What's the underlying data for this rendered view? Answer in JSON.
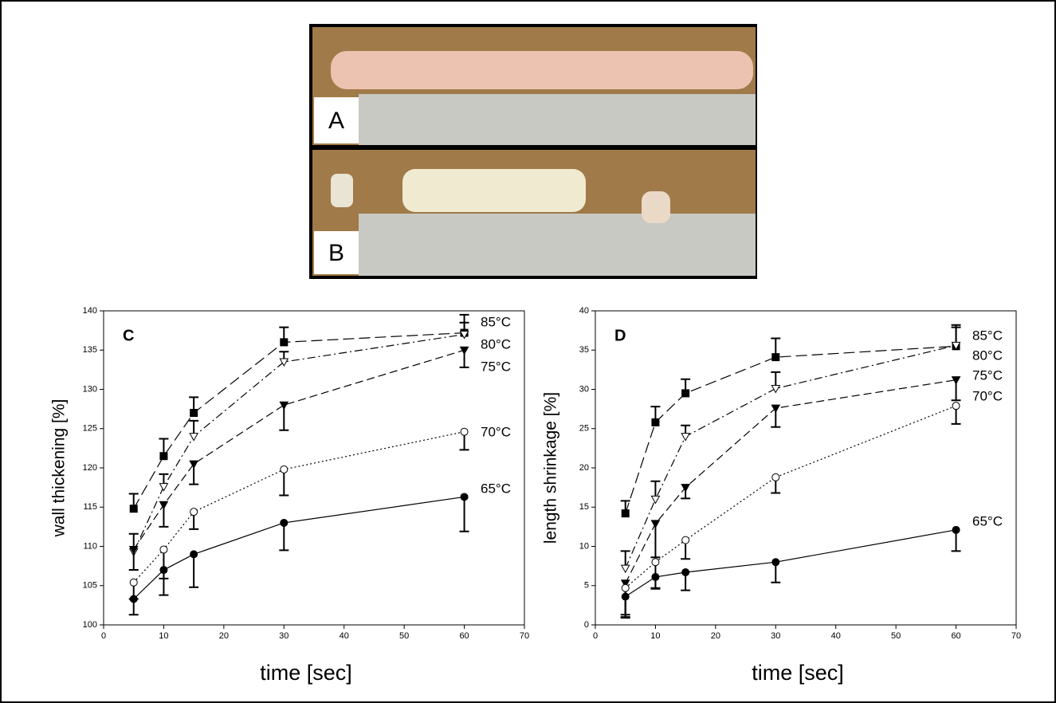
{
  "panels": [
    {
      "label": "A"
    },
    {
      "label": "B"
    }
  ],
  "chart_data": [
    {
      "type": "line",
      "panel_label": "C",
      "ylabel": "wall thickening [%]",
      "xlabel": "time [sec]",
      "x": [
        5,
        10,
        15,
        30,
        60
      ],
      "xlim": [
        0,
        70
      ],
      "xticks": [
        0,
        10,
        20,
        30,
        40,
        50,
        60,
        70
      ],
      "ylim": [
        100,
        140
      ],
      "yticks": [
        100,
        105,
        110,
        115,
        120,
        125,
        130,
        135,
        140
      ],
      "series": [
        {
          "name": "85°C",
          "color": "#000000",
          "marker": "square",
          "marker_filled": true,
          "line_style": "long-dash",
          "error_side": "up",
          "values": [
            114.8,
            121.5,
            127,
            136,
            137.2
          ],
          "errors": [
            1.9,
            2.2,
            2,
            1.9,
            2.3
          ]
        },
        {
          "name": "80°C",
          "color": "#000000",
          "marker": "triangle-down",
          "marker_filled": false,
          "line_style": "dash-dot",
          "error_side": "up",
          "values": [
            109.3,
            117.6,
            124,
            133.5,
            137
          ],
          "errors": [
            2.3,
            1.6,
            2,
            1.3,
            1.5
          ]
        },
        {
          "name": "75°C",
          "color": "#000000",
          "marker": "triangle-down",
          "marker_filled": true,
          "line_style": "dashed",
          "error_side": "down",
          "values": [
            109.6,
            115.3,
            120.5,
            128,
            135
          ],
          "errors": [
            2.6,
            2.8,
            2.6,
            3.2,
            2.2
          ]
        },
        {
          "name": "70°C",
          "color": "#000000",
          "marker": "circle",
          "marker_filled": false,
          "line_style": "dotted",
          "error_side": "down",
          "values": [
            105.4,
            109.6,
            114.4,
            119.8,
            124.6
          ],
          "errors": [
            2.1,
            3.7,
            2.2,
            3.3,
            2.3
          ]
        },
        {
          "name": "65°C",
          "color": "#000000",
          "marker": "circle",
          "marker_filled": true,
          "line_style": "solid",
          "error_side": "down",
          "values": [
            103.3,
            107,
            109,
            113,
            116.3
          ],
          "errors": [
            2,
            3.2,
            4.2,
            3.5,
            4.4
          ]
        }
      ]
    },
    {
      "type": "line",
      "panel_label": "D",
      "ylabel": "length shrinkage [%]",
      "xlabel": "time [sec]",
      "x": [
        5,
        10,
        15,
        30,
        60
      ],
      "xlim": [
        0,
        70
      ],
      "xticks": [
        0,
        10,
        20,
        30,
        40,
        50,
        60,
        70
      ],
      "ylim": [
        0,
        40
      ],
      "yticks": [
        0,
        5,
        10,
        15,
        20,
        25,
        30,
        35,
        40
      ],
      "series": [
        {
          "name": "85°C",
          "color": "#000000",
          "marker": "square",
          "marker_filled": true,
          "line_style": "long-dash",
          "error_side": "up",
          "values": [
            14.2,
            25.8,
            29.5,
            34.1,
            35.5
          ],
          "errors": [
            1.6,
            2,
            1.8,
            2.4,
            2.7
          ]
        },
        {
          "name": "80°C",
          "color": "#000000",
          "marker": "triangle-down",
          "marker_filled": false,
          "line_style": "dash-dot",
          "error_side": "up",
          "values": [
            7.2,
            16,
            24,
            30.1,
            35.6
          ],
          "errors": [
            2.2,
            2.3,
            1.4,
            2.1,
            2.3
          ]
        },
        {
          "name": "75°C",
          "color": "#000000",
          "marker": "triangle-down",
          "marker_filled": true,
          "line_style": "dashed",
          "error_side": "down",
          "values": [
            5.3,
            12.9,
            17.5,
            27.6,
            31.2
          ],
          "errors": [
            4,
            4.3,
            1.4,
            2.4,
            2.6
          ]
        },
        {
          "name": "70°C",
          "color": "#000000",
          "marker": "circle",
          "marker_filled": false,
          "line_style": "dotted",
          "error_side": "down",
          "values": [
            4.7,
            8,
            10.8,
            18.8,
            27.9
          ],
          "errors": [
            3.7,
            3.4,
            2.4,
            2,
            2.3
          ]
        },
        {
          "name": "65°C",
          "color": "#000000",
          "marker": "circle",
          "marker_filled": true,
          "line_style": "solid",
          "error_side": "down",
          "values": [
            3.6,
            6.1,
            6.7,
            8,
            12.1
          ],
          "errors": [
            2.7,
            1.4,
            2.3,
            2.6,
            2.7
          ]
        }
      ]
    }
  ]
}
